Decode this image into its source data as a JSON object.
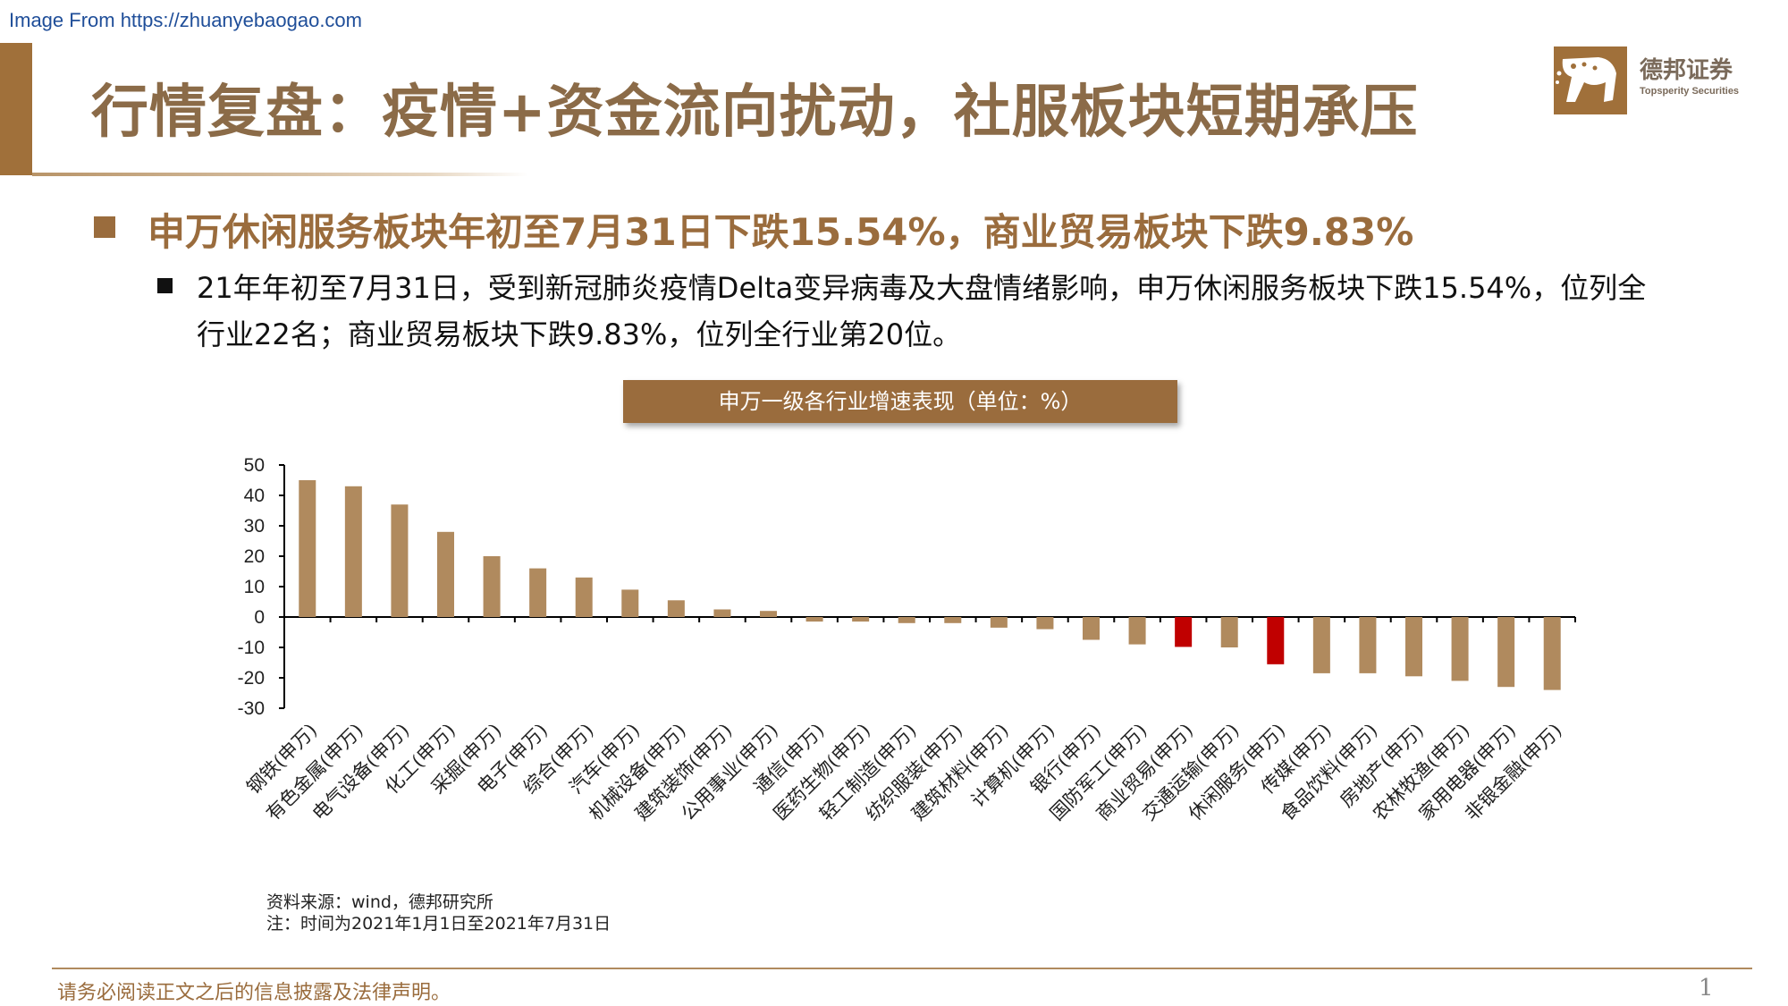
{
  "header": {
    "watermark": "Image From https://zhuanyebaogao.com",
    "title": "行情复盘：疫情+资金流向扰动，社服板块短期承压"
  },
  "logo": {
    "name": "德邦证券",
    "subtitle": "Topsperity Securities"
  },
  "headline": "申万休闲服务板块年初至7月31日下跌15.54%，商业贸易板块下跌9.83%",
  "body": "21年年初至7月31日，受到新冠肺炎疫情Delta变异病毒及大盘情绪影响，申万休闲服务板块下跌15.54%，位列全行业22名；商业贸易板块下跌9.83%，位列全行业第20位。",
  "chart_data": {
    "type": "bar",
    "title": "申万一级各行业增速表现（单位：%）",
    "categories": [
      "钢铁(申万)",
      "有色金属(申万)",
      "电气设备(申万)",
      "化工(申万)",
      "采掘(申万)",
      "电子(申万)",
      "综合(申万)",
      "汽车(申万)",
      "机械设备(申万)",
      "建筑装饰(申万)",
      "公用事业(申万)",
      "通信(申万)",
      "医药生物(申万)",
      "轻工制造(申万)",
      "纺织服装(申万)",
      "建筑材料(申万)",
      "计算机(申万)",
      "银行(申万)",
      "国防军工(申万)",
      "商业贸易(申万)",
      "交通运输(申万)",
      "休闲服务(申万)",
      "传媒(申万)",
      "食品饮料(申万)",
      "房地产(申万)",
      "农林牧渔(申万)",
      "家用电器(申万)",
      "非银金融(申万)"
    ],
    "values": [
      45,
      43,
      37,
      28,
      20,
      16,
      13,
      9,
      5.5,
      2.5,
      2,
      -1.5,
      -1.5,
      -2,
      -2,
      -3.5,
      -4,
      -7.5,
      -9,
      -9.83,
      -10,
      -15.54,
      -18.5,
      -18.5,
      -19.5,
      -21,
      -23,
      -24
    ],
    "highlight": [
      "商业贸易(申万)",
      "休闲服务(申万)"
    ],
    "yticks": [
      50,
      40,
      30,
      20,
      10,
      0,
      -10,
      -20,
      -30
    ],
    "ylim": [
      -30,
      50
    ],
    "bar_color": "#b08a5e",
    "highlight_color": "#c00000",
    "grid": false
  },
  "source": {
    "line1": "资料来源：wind，德邦研究所",
    "line2": "注：时间为2021年1月1日至2021年7月31日"
  },
  "footer": {
    "disclaimer": "请务必阅读正文之后的信息披露及法律声明。",
    "page": "1"
  }
}
